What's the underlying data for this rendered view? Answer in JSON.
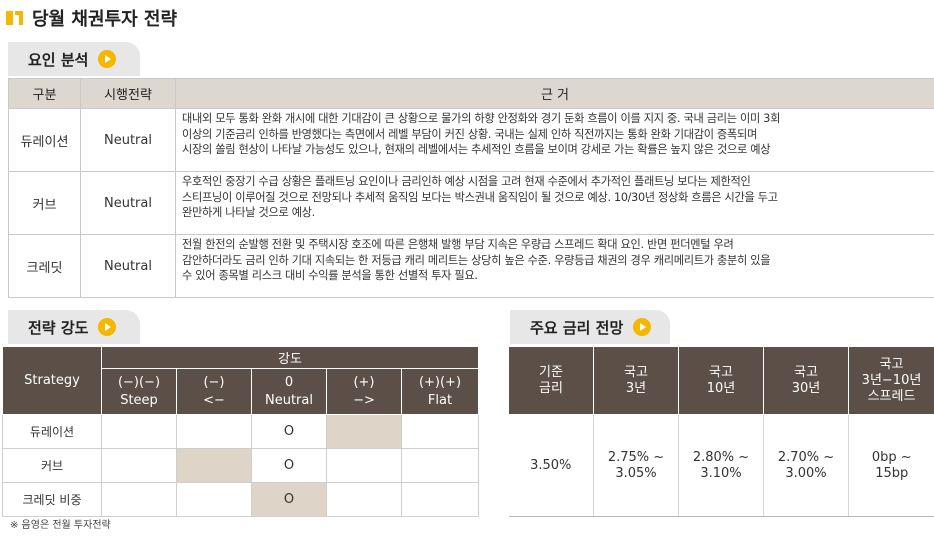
{
  "title": "당월 채권투자 전략",
  "reason_section": {
    "tab_label": "요인 분석",
    "headers": [
      "구분",
      "시행전략",
      "근 거"
    ],
    "rows": [
      {
        "category": "듀레이션",
        "view": "Neutral",
        "text": [
          "대내외 모두 통화 완화 개시에 대한 기대감이 큰 상황으로 물가의 하향 안정화와 경기 둔화 흐름이 이를 지지 중. 국내 금리는 이미 3회",
          "이상의 기준금리 인하를 반영했다는 측면에서 레벨 부담이 커진 상황. 국내는 실제 인하 직전까지는 통화 완화 기대감이 증폭되며",
          "시장의 쏠림 현상이 나타날 가능성도 있으나, 현재의 레벨에서는 추세적인 흐름을 보이며 강세로 가는 확률은 높지 않은 것으로 예상"
        ]
      },
      {
        "category": "커브",
        "view": "Neutral",
        "text": [
          "우호적인 중장기 수급 상황은 플래트닝 요인이나 금리인하 예상 시점을 고려 현재 수준에서 추가적인 플래트닝 보다는 제한적인",
          "스티프닝이 이루어질 것으로 전망되나 추세적 움직임 보다는 박스권내 움직임이 될 것으로 예상. 10/30년 정상화 흐름은 시간을 두고",
          "완만하게 나타날 것으로 예상."
        ]
      },
      {
        "category": "크레딧",
        "view": "Neutral",
        "text": [
          "전월 한전의 순발행 전환 및 주택시장 호조에 따른 은행채 발행 부담 지속은 우량급 스프레드 확대 요인. 반면 펀더멘털 우려",
          "감안하더라도 금리 인하 기대 지속되는 한 저등급 캐리 메리트는 상당히 높은 수준. 우량등급 채권의 경우 캐리메리트가 충분히 있을",
          "수 있어 종목별 리스크 대비 수익률 분석을 통한 선별적 투자 필요."
        ]
      }
    ]
  },
  "strategy_section": {
    "tab_label": "전략 강도",
    "header_strategy": "Strategy",
    "header_group": "강도",
    "columns": [
      {
        "top": "(−)(−)",
        "bottom": "Steep"
      },
      {
        "top": "(−)",
        "bottom": "<−"
      },
      {
        "top": "0",
        "bottom": "Neutral"
      },
      {
        "top": "(+)",
        "bottom": "−>"
      },
      {
        "top": "(+)(+)",
        "bottom": "Flat"
      }
    ],
    "rows": [
      {
        "label": "듀레이션",
        "cells": [
          "",
          "",
          "O",
          "",
          ""
        ],
        "shaded": [
          false,
          false,
          false,
          true,
          false
        ]
      },
      {
        "label": "커브",
        "cells": [
          "",
          "",
          "O",
          "",
          ""
        ],
        "shaded": [
          false,
          true,
          false,
          false,
          false
        ]
      },
      {
        "label": "크레딧 비중",
        "cells": [
          "",
          "",
          "O",
          "",
          ""
        ],
        "shaded": [
          false,
          false,
          true,
          false,
          false
        ]
      }
    ]
  },
  "rates_section": {
    "tab_label": "주요 금리 전망",
    "headers": [
      [
        "기준",
        "금리"
      ],
      [
        "국고",
        "3년"
      ],
      [
        "국고",
        "10년"
      ],
      [
        "국고",
        "30년"
      ],
      [
        "국고",
        "3년−10년",
        "스프레드"
      ]
    ],
    "values": [
      [
        "3.50%"
      ],
      [
        "2.75% ~",
        "3.05%"
      ],
      [
        "2.80% ~",
        "3.10%"
      ],
      [
        "2.70% ~",
        "3.00%"
      ],
      [
        "0bp ~",
        "15bp"
      ]
    ]
  },
  "footnote": "※ 음영은 전월 투자전략",
  "colors": {
    "accent": "#f5b800",
    "header_dark": "#5b4f47",
    "header_light": "#dcd7cf",
    "shade": "#ded4c8"
  }
}
